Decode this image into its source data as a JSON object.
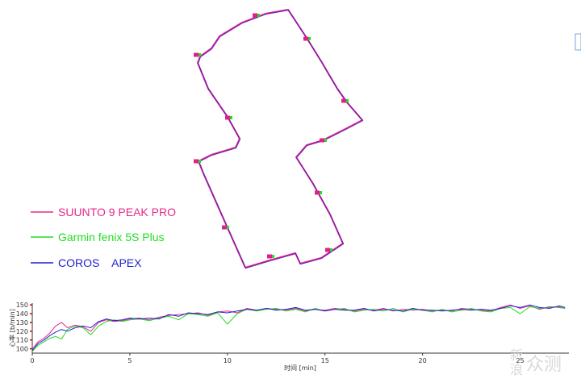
{
  "colors": {
    "suunto": "#e8288c",
    "garmin": "#22dd22",
    "coros": "#2222cc",
    "route": "#e0208a",
    "axis": "#333333",
    "tick_red": "#cc0000"
  },
  "legend": {
    "items": [
      {
        "label": "SUUNTO 9 PEAK PRO",
        "color": "#e8288c"
      },
      {
        "label": "Garmin fenix 5S Plus",
        "color": "#22dd22"
      },
      {
        "label": "COROS    APEX",
        "color": "#2222cc"
      }
    ]
  },
  "chart_data": [
    {
      "type": "line",
      "xlabel": "时间 [min]",
      "ylabel": "心率 [b/min]",
      "xlim": [
        0,
        27.5
      ],
      "ylim": [
        95,
        152
      ],
      "xticks": [
        0,
        5,
        10,
        15,
        20,
        25
      ],
      "yticks": [
        100,
        110,
        120,
        130,
        140,
        150
      ],
      "grid": false,
      "series": [
        {
          "name": "SUUNTO 9 PEAK PRO",
          "color": "#e8288c",
          "x": [
            0,
            0.3,
            0.6,
            0.9,
            1.2,
            1.5,
            1.8,
            2.2,
            2.6,
            3.0,
            3.4,
            3.8,
            4.2,
            4.6,
            5.0,
            5.5,
            6.0,
            6.5,
            7.0,
            7.5,
            8.0,
            8.5,
            9.0,
            9.5,
            10.0,
            10.5,
            11.0,
            11.5,
            12.0,
            12.5,
            13.0,
            13.5,
            14.0,
            14.5,
            15.0,
            15.5,
            16.0,
            16.5,
            17.0,
            17.5,
            18.0,
            18.5,
            19.0,
            19.5,
            20.0,
            20.5,
            21.0,
            21.5,
            22.0,
            22.5,
            23.0,
            23.5,
            24.0,
            24.5,
            25.0,
            25.5,
            26.0,
            26.5,
            27.0,
            27.3
          ],
          "y": [
            100,
            108,
            112,
            118,
            126,
            130,
            124,
            127,
            125,
            120,
            130,
            133,
            131,
            132,
            134,
            135,
            133,
            136,
            138,
            139,
            140,
            141,
            138,
            142,
            143,
            141,
            146,
            144,
            146,
            145,
            144,
            146,
            143,
            145,
            144,
            146,
            145,
            143,
            145,
            144,
            146,
            143,
            145,
            144,
            145,
            143,
            144,
            143,
            146,
            145,
            144,
            143,
            147,
            150,
            146,
            149,
            145,
            148,
            147,
            146
          ]
        },
        {
          "name": "Garmin fenix 5S Plus",
          "color": "#22dd22",
          "x": [
            0,
            0.3,
            0.6,
            0.9,
            1.2,
            1.5,
            1.8,
            2.2,
            2.6,
            3.0,
            3.4,
            3.8,
            4.2,
            4.6,
            5.0,
            5.5,
            6.0,
            6.5,
            7.0,
            7.5,
            8.0,
            8.5,
            9.0,
            9.5,
            10.0,
            10.5,
            11.0,
            11.5,
            12.0,
            12.5,
            13.0,
            13.5,
            14.0,
            14.5,
            15.0,
            15.5,
            16.0,
            16.5,
            17.0,
            17.5,
            18.0,
            18.5,
            19.0,
            19.5,
            20.0,
            20.5,
            21.0,
            21.5,
            22.0,
            22.5,
            23.0,
            23.5,
            24.0,
            24.5,
            25.0,
            25.5,
            26.0,
            26.5,
            27.0,
            27.3
          ],
          "y": [
            97,
            104,
            108,
            112,
            114,
            111,
            122,
            126,
            124,
            116,
            126,
            131,
            133,
            131,
            133,
            134,
            132,
            135,
            137,
            133,
            140,
            139,
            137,
            141,
            128,
            140,
            145,
            143,
            145,
            146,
            143,
            145,
            142,
            146,
            143,
            145,
            146,
            142,
            144,
            145,
            143,
            146,
            142,
            145,
            144,
            142,
            145,
            142,
            144,
            146,
            143,
            142,
            146,
            147,
            140,
            148,
            146,
            147,
            148,
            146
          ]
        },
        {
          "name": "COROS    APEX",
          "color": "#2222cc",
          "x": [
            0,
            0.3,
            0.6,
            0.9,
            1.2,
            1.5,
            1.8,
            2.2,
            2.6,
            3.0,
            3.4,
            3.8,
            4.2,
            4.6,
            5.0,
            5.5,
            6.0,
            6.5,
            7.0,
            7.5,
            8.0,
            8.5,
            9.0,
            9.5,
            10.0,
            10.5,
            11.0,
            11.5,
            12.0,
            12.5,
            13.0,
            13.5,
            14.0,
            14.5,
            15.0,
            15.5,
            16.0,
            16.5,
            17.0,
            17.5,
            18.0,
            18.5,
            19.0,
            19.5,
            20.0,
            20.5,
            21.0,
            21.5,
            22.0,
            22.5,
            23.0,
            23.5,
            24.0,
            24.5,
            25.0,
            25.5,
            26.0,
            26.5,
            27.0,
            27.3
          ],
          "y": [
            98,
            106,
            110,
            115,
            119,
            122,
            120,
            124,
            126,
            124,
            131,
            134,
            132,
            133,
            135,
            134,
            135,
            134,
            139,
            137,
            141,
            140,
            139,
            142,
            141,
            143,
            145,
            144,
            146,
            144,
            145,
            147,
            144,
            145,
            143,
            145,
            144,
            144,
            146,
            143,
            145,
            144,
            143,
            146,
            144,
            144,
            143,
            144,
            145,
            144,
            145,
            144,
            146,
            149,
            147,
            150,
            147,
            146,
            149,
            147
          ]
        }
      ]
    },
    {
      "type": "scatter",
      "series": [
        {
          "name": "SUUNTO 9 PEAK PRO",
          "color": "#e0208a",
          "route": [
            [
              357,
              12
            ],
            [
              329,
              17
            ],
            [
              300,
              28
            ],
            [
              272,
              45
            ],
            [
              262,
              60
            ],
            [
              248,
              70
            ],
            [
              245,
              78
            ],
            [
              258,
              110
            ],
            [
              282,
              145
            ],
            [
              297,
              172
            ],
            [
              292,
              183
            ],
            [
              262,
              192
            ],
            [
              246,
              200
            ],
            [
              252,
              215
            ],
            [
              275,
              267
            ],
            [
              304,
              332
            ],
            [
              334,
              323
            ],
            [
              366,
              314
            ],
            [
              372,
              327
            ],
            [
              398,
              320
            ],
            [
              425,
              302
            ],
            [
              409,
              266
            ],
            [
              388,
              228
            ],
            [
              367,
              195
            ],
            [
              380,
              180
            ],
            [
              400,
              174
            ],
            [
              428,
              160
            ],
            [
              449,
              149
            ],
            [
              430,
              127
            ],
            [
              418,
              110
            ],
            [
              398,
              76
            ],
            [
              380,
              47
            ]
          ],
          "markers": [
            [
              316,
              19
            ],
            [
              379,
              48
            ],
            [
              243,
              68
            ],
            [
              426,
              125
            ],
            [
              282,
              146
            ],
            [
              399,
              174
            ],
            [
              243,
              200
            ],
            [
              393,
              239
            ],
            [
              278,
              282
            ],
            [
              334,
              318
            ],
            [
              406,
              310
            ]
          ]
        }
      ]
    }
  ],
  "watermark": {
    "line1": "新",
    "line2": "浪",
    "brand": "众测"
  }
}
